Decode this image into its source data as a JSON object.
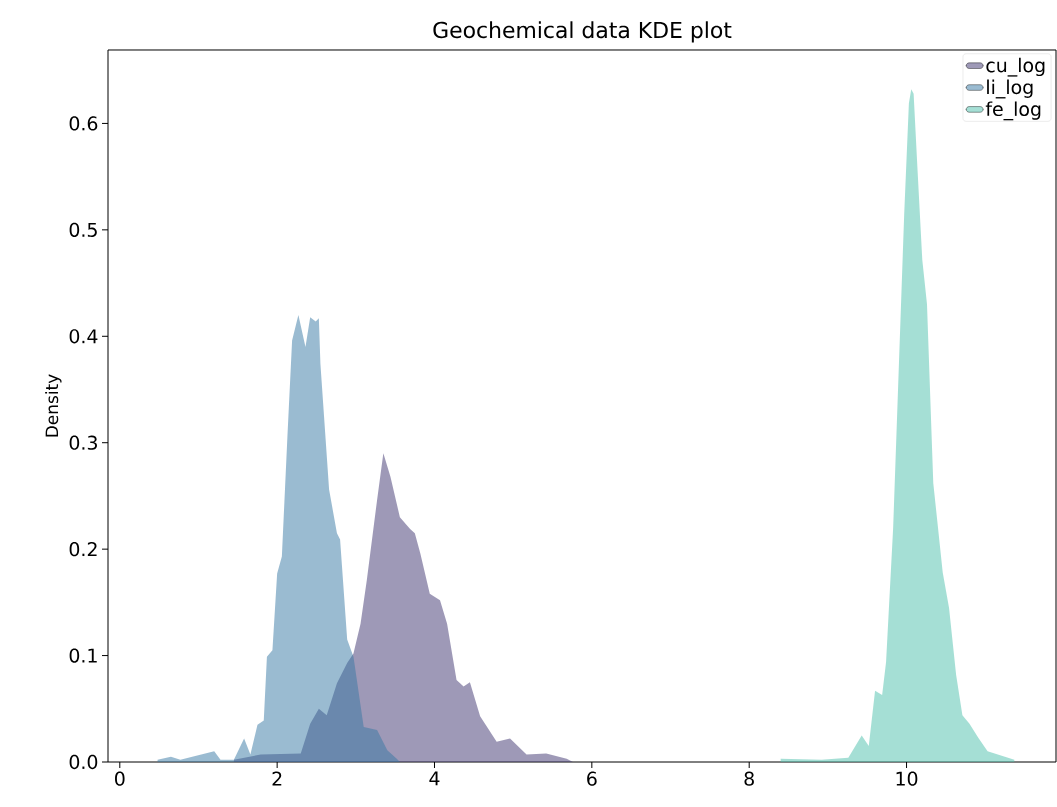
{
  "chart_data": {
    "type": "area",
    "title": "Geochemical data KDE plot",
    "ylabel": "Density",
    "xlim": [
      -0.15,
      11.9
    ],
    "ylim": [
      0,
      0.669
    ],
    "xticks": [
      0,
      2,
      4,
      6,
      8,
      10
    ],
    "yticks": [
      {
        "value": 0,
        "label": "0.0"
      },
      {
        "value": 0.1,
        "label": "0.1"
      },
      {
        "value": 0.2,
        "label": "0.2"
      },
      {
        "value": 0.3,
        "label": "0.3"
      },
      {
        "value": 0.4,
        "label": "0.4"
      },
      {
        "value": 0.5,
        "label": "0.5"
      },
      {
        "value": 0.6,
        "label": "0.6"
      }
    ],
    "legend": "top right",
    "grid": false,
    "series": [
      {
        "name": "cu_log",
        "color": "#9e99b7",
        "x": [
          1.45,
          1.79,
          2.3,
          2.42,
          2.53,
          2.63,
          2.76,
          2.89,
          2.97,
          3.06,
          3.14,
          3.27,
          3.35,
          3.44,
          3.56,
          3.69,
          3.75,
          3.82,
          3.94,
          4.07,
          4.16,
          4.28,
          4.37,
          4.45,
          4.58,
          4.79,
          4.96,
          5.17,
          5.42,
          5.68,
          5.76
        ],
        "values": [
          0.002,
          0.007,
          0.008,
          0.036,
          0.05,
          0.044,
          0.074,
          0.093,
          0.102,
          0.13,
          0.171,
          0.246,
          0.29,
          0.268,
          0.23,
          0.219,
          0.215,
          0.196,
          0.158,
          0.152,
          0.13,
          0.077,
          0.071,
          0.075,
          0.043,
          0.019,
          0.022,
          0.007,
          0.008,
          0.003,
          0
        ]
      },
      {
        "name": "li_log",
        "color": "#9abbd1",
        "x": [
          0.48,
          0.65,
          0.77,
          1.2,
          1.28,
          1.45,
          1.58,
          1.66,
          1.75,
          1.83,
          1.87,
          1.94,
          2.0,
          2.06,
          2.13,
          2.19,
          2.27,
          2.36,
          2.42,
          2.49,
          2.53,
          2.55,
          2.66,
          2.76,
          2.8,
          2.89,
          2.97,
          3.1,
          3.27,
          3.4,
          3.52,
          3.56
        ],
        "values": [
          0.002,
          0.005,
          0.002,
          0.01,
          0.002,
          0.002,
          0.022,
          0.007,
          0.035,
          0.039,
          0.099,
          0.105,
          0.177,
          0.193,
          0.305,
          0.396,
          0.42,
          0.39,
          0.418,
          0.414,
          0.417,
          0.374,
          0.256,
          0.215,
          0.209,
          0.115,
          0.099,
          0.033,
          0.03,
          0.011,
          0.003,
          0
        ]
      },
      {
        "name": "fe_log",
        "color": "#a5dfd5",
        "x": [
          8.4,
          8.92,
          9.26,
          9.43,
          9.52,
          9.6,
          9.69,
          9.74,
          9.83,
          9.91,
          9.97,
          10.03,
          10.06,
          10.09,
          10.14,
          10.2,
          10.26,
          10.34,
          10.46,
          10.54,
          10.63,
          10.71,
          10.8,
          10.91,
          11.03,
          11.2,
          11.37
        ],
        "values": [
          0.003,
          0.002,
          0.004,
          0.025,
          0.015,
          0.067,
          0.063,
          0.094,
          0.22,
          0.388,
          0.514,
          0.619,
          0.632,
          0.628,
          0.556,
          0.472,
          0.43,
          0.262,
          0.178,
          0.145,
          0.082,
          0.044,
          0.036,
          0.023,
          0.01,
          0.006,
          0.002
        ]
      }
    ]
  }
}
